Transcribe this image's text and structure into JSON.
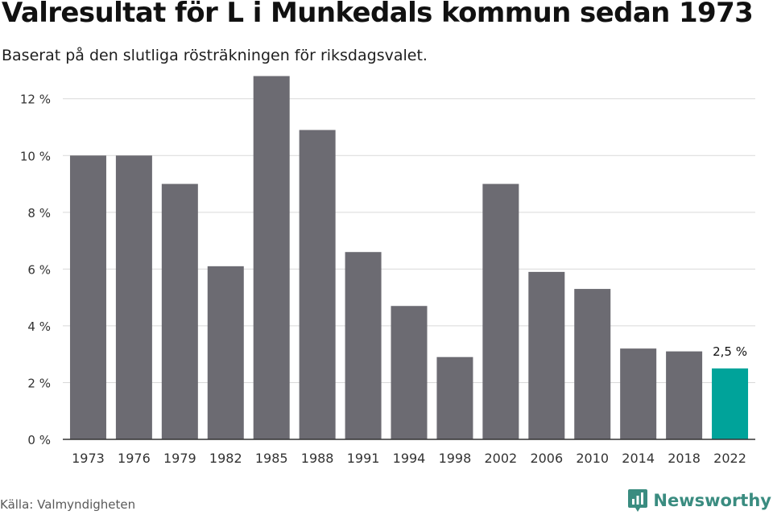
{
  "title": "Valresultat för L i Munkedals kommun sedan 1973",
  "subtitle": "Baserat på den slutliga rösträkningen för riksdagsvalet.",
  "source": "Källa: Valmyndigheten",
  "brand": {
    "name": "Newsworthy",
    "icon": "newsworthy-logo-icon",
    "color": "#3a8c80"
  },
  "colors": {
    "bar": "#6c6b72",
    "highlight": "#00a39a",
    "grid": "#d9d9d9",
    "axis": "#333333"
  },
  "chart_data": {
    "type": "bar",
    "title": "",
    "xlabel": "",
    "ylabel": "",
    "categories": [
      "1973",
      "1976",
      "1979",
      "1982",
      "1985",
      "1988",
      "1991",
      "1994",
      "1998",
      "2002",
      "2006",
      "2010",
      "2014",
      "2018",
      "2022"
    ],
    "values": [
      10.0,
      10.0,
      9.0,
      6.1,
      12.8,
      10.9,
      6.6,
      4.7,
      2.9,
      9.0,
      5.9,
      5.3,
      3.2,
      3.1,
      2.5
    ],
    "ylim": [
      0,
      12.9
    ],
    "yticks": [
      0,
      2,
      4,
      6,
      8,
      10,
      12
    ],
    "ytick_labels": [
      "0 %",
      "2 %",
      "4 %",
      "6 %",
      "8 %",
      "10 %",
      "12 %"
    ],
    "grid": true,
    "highlight_index": 14,
    "data_labels": [
      {
        "index": 14,
        "text": "2,5 %"
      }
    ]
  }
}
